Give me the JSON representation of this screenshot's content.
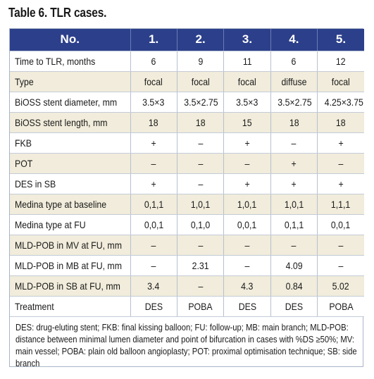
{
  "title": "Table 6. TLR cases.",
  "header": [
    "No.",
    "1.",
    "2.",
    "3.",
    "4.",
    "5."
  ],
  "rows": [
    {
      "label": "Time to TLR, months",
      "values": [
        "6",
        "9",
        "11",
        "6",
        "12"
      ]
    },
    {
      "label": "Type",
      "values": [
        "focal",
        "focal",
        "focal",
        "diffuse",
        "focal"
      ]
    },
    {
      "label": "BiOSS stent diameter, mm",
      "values": [
        "3.5×3",
        "3.5×2.75",
        "3.5×3",
        "3.5×2.75",
        "4.25×3.75"
      ]
    },
    {
      "label": "BiOSS stent length, mm",
      "values": [
        "18",
        "18",
        "15",
        "18",
        "18"
      ]
    },
    {
      "label": "FKB",
      "values": [
        "+",
        "–",
        "+",
        "–",
        "+"
      ]
    },
    {
      "label": "POT",
      "values": [
        "–",
        "–",
        "–",
        "+",
        "–"
      ]
    },
    {
      "label": "DES in SB",
      "values": [
        "+",
        "–",
        "+",
        "+",
        "+"
      ]
    },
    {
      "label": "Medina type at baseline",
      "values": [
        "0,1,1",
        "1,0,1",
        "1,0,1",
        "1,0,1",
        "1,1,1"
      ]
    },
    {
      "label": "Medina type at FU",
      "values": [
        "0,0,1",
        "0,1,0",
        "0,0,1",
        "0,1,1",
        "0,0,1"
      ]
    },
    {
      "label": "MLD-POB in MV at FU, mm",
      "values": [
        "–",
        "–",
        "–",
        "–",
        "–"
      ]
    },
    {
      "label": "MLD-POB in MB at FU, mm",
      "values": [
        "–",
        "2.31",
        "–",
        "4.09",
        "–"
      ]
    },
    {
      "label": "MLD-POB in SB at FU, mm",
      "values": [
        "3.4",
        "–",
        "4.3",
        "0.84",
        "5.02"
      ]
    },
    {
      "label": "Treatment",
      "values": [
        "DES",
        "POBA",
        "DES",
        "DES",
        "POBA"
      ]
    }
  ],
  "footnote": "DES: drug-eluting stent; FKB: final kissing balloon; FU: follow-up; MB: main branch; MLD-POB: distance between minimal lumen diameter and point of bifurcation in cases with %DS ≥50%; MV: main vessel; POBA: plain old balloon angioplasty; POT: proximal optimisation technique; SB: side branch"
}
